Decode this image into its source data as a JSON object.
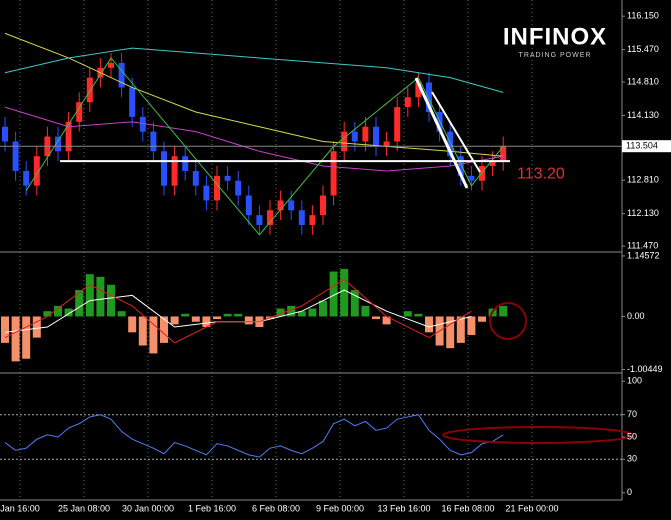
{
  "logo": {
    "name": "INFINOX",
    "tagline": "TRADING POWER"
  },
  "time_axis": [
    "Jan 16:00",
    "25 Jan 08:00",
    "30 Jan 00:00",
    "1 Feb 16:00",
    "6 Feb 08:00",
    "9 Feb 00:00",
    "13 Feb 16:00",
    "16 Feb 08:00",
    "21 Feb 00:00"
  ],
  "chart_data": [
    {
      "type": "candlestick",
      "up_color": "#ff2a2a",
      "down_color": "#2850ff",
      "open": [
        113.9,
        113.6,
        113.0,
        112.7,
        113.3,
        113.7,
        113.4,
        114.0,
        114.4,
        114.9,
        115.1,
        115.2,
        114.7,
        114.1,
        113.8,
        113.4,
        112.7,
        113.3,
        113.0,
        112.7,
        112.4,
        112.9,
        112.8,
        112.5,
        112.1,
        111.9,
        112.2,
        112.4,
        112.2,
        111.9,
        112.1,
        112.5,
        113.4,
        113.8,
        113.6,
        113.9,
        113.5,
        113.6,
        114.3,
        114.5,
        114.8,
        114.2,
        113.8,
        113.3,
        112.9,
        112.8,
        113.1,
        113.2
      ],
      "high": [
        114.1,
        113.8,
        113.2,
        113.5,
        113.9,
        113.9,
        114.2,
        114.6,
        115.1,
        115.3,
        115.4,
        115.4,
        114.9,
        114.3,
        114.0,
        113.6,
        113.5,
        113.5,
        113.2,
        112.9,
        113.1,
        113.1,
        113.0,
        112.7,
        112.3,
        112.4,
        112.6,
        112.6,
        112.4,
        112.3,
        112.7,
        113.6,
        114.0,
        114.0,
        114.1,
        114.1,
        113.8,
        114.5,
        114.7,
        115.0,
        115.0,
        114.4,
        114.0,
        113.5,
        113.1,
        113.3,
        113.4,
        113.7
      ],
      "low": [
        113.4,
        112.8,
        112.5,
        112.5,
        113.1,
        113.2,
        113.2,
        113.8,
        114.2,
        114.7,
        114.9,
        114.5,
        113.9,
        113.6,
        113.2,
        112.5,
        112.5,
        112.8,
        112.5,
        112.2,
        112.2,
        112.6,
        112.3,
        111.9,
        111.7,
        111.7,
        112.0,
        112.0,
        111.7,
        111.7,
        111.9,
        112.3,
        113.2,
        113.4,
        113.4,
        113.3,
        113.3,
        113.4,
        114.1,
        114.3,
        114.0,
        113.6,
        113.1,
        112.7,
        112.6,
        112.6,
        112.9,
        113.0
      ],
      "close": [
        113.6,
        113.0,
        112.7,
        113.3,
        113.7,
        113.4,
        114.0,
        114.4,
        114.9,
        115.1,
        115.2,
        114.7,
        114.1,
        113.8,
        113.4,
        112.7,
        113.3,
        113.0,
        112.7,
        112.4,
        112.9,
        112.8,
        112.5,
        112.1,
        111.9,
        112.2,
        112.4,
        112.2,
        111.9,
        112.1,
        112.5,
        113.4,
        113.8,
        113.6,
        113.9,
        113.5,
        113.6,
        114.3,
        114.5,
        114.8,
        114.2,
        113.8,
        113.3,
        112.9,
        112.8,
        113.1,
        113.2,
        113.5
      ],
      "lines": [
        {
          "color": "#d8d84a",
          "x": [
            0,
            6,
            12,
            18,
            24,
            30,
            36,
            42,
            47
          ],
          "values": [
            115.8,
            115.3,
            114.7,
            114.2,
            113.9,
            113.6,
            113.5,
            113.4,
            113.3
          ]
        },
        {
          "color": "#3fc8c8",
          "x": [
            0,
            6,
            12,
            18,
            24,
            30,
            36,
            42,
            47
          ],
          "values": [
            115.0,
            115.3,
            115.5,
            115.4,
            115.3,
            115.2,
            115.1,
            114.9,
            114.6
          ]
        },
        {
          "color": "#c840c8",
          "x": [
            0,
            6,
            12,
            18,
            24,
            30,
            36,
            42,
            47
          ],
          "values": [
            114.3,
            113.9,
            114.0,
            113.8,
            113.4,
            113.1,
            113.0,
            113.1,
            113.3
          ]
        },
        {
          "color": "#3cbf3c",
          "x": [
            2,
            10,
            24,
            31,
            39,
            44,
            47
          ],
          "values": [
            112.6,
            115.3,
            111.7,
            113.5,
            114.9,
            112.7,
            113.5
          ]
        }
      ],
      "support_line": 113.2,
      "support_label": "113.20",
      "last_price": 113.504,
      "ylim": [
        111.35,
        116.48
      ],
      "yticks": [
        {
          "value": 116.15,
          "label": "116.150"
        },
        {
          "value": 115.47,
          "label": "115.470"
        },
        {
          "value": 114.81,
          "label": "114.810"
        },
        {
          "value": 114.13,
          "label": "114.130"
        },
        {
          "value": 112.81,
          "label": "112.810"
        },
        {
          "value": 112.13,
          "label": "112.130"
        },
        {
          "value": 111.47,
          "label": "111.470"
        }
      ]
    },
    {
      "type": "bar",
      "pos_color": "#1f9a1f",
      "neg_color": "#f4906a",
      "values": [
        -0.5,
        -0.85,
        -0.8,
        -0.4,
        0.1,
        0.2,
        0.15,
        0.5,
        0.8,
        0.75,
        0.6,
        0.1,
        -0.3,
        -0.55,
        -0.7,
        -0.5,
        -0.15,
        0.05,
        -0.1,
        -0.2,
        -0.05,
        0.05,
        0.05,
        -0.15,
        -0.2,
        -0.05,
        0.15,
        0.2,
        0.1,
        0.15,
        0.3,
        0.85,
        0.9,
        0.5,
        0.2,
        -0.05,
        -0.15,
        0.0,
        0.1,
        0.05,
        -0.3,
        -0.55,
        -0.6,
        -0.5,
        -0.35,
        -0.1,
        0.15,
        0.2
      ],
      "lines": [
        {
          "color": "#ffffff",
          "x": [
            0,
            4,
            8,
            12,
            16,
            20,
            24,
            28,
            32,
            36,
            40,
            44
          ],
          "values": [
            -0.3,
            -0.2,
            0.3,
            0.4,
            -0.2,
            -0.1,
            -0.1,
            0.1,
            0.5,
            0.1,
            -0.2,
            0.0
          ]
        },
        {
          "color": "#e02020",
          "x": [
            0,
            4,
            8,
            12,
            16,
            20,
            24,
            28,
            32,
            36,
            40,
            44
          ],
          "values": [
            -0.4,
            0.0,
            0.6,
            0.2,
            -0.5,
            -0.1,
            -0.1,
            0.2,
            0.7,
            0.0,
            -0.4,
            0.1
          ]
        }
      ],
      "ylim": [
        -1.07,
        1.22
      ],
      "yticks": [
        1.14572,
        {
          "value": 0,
          "label": "0.00"
        },
        -1.00449
      ]
    },
    {
      "type": "line",
      "color": "#4a7ff0",
      "values": [
        45,
        38,
        40,
        48,
        52,
        50,
        58,
        62,
        68,
        70,
        66,
        55,
        48,
        44,
        40,
        35,
        45,
        42,
        38,
        34,
        44,
        42,
        38,
        34,
        32,
        40,
        42,
        38,
        35,
        40,
        46,
        62,
        66,
        60,
        64,
        56,
        58,
        66,
        68,
        70,
        56,
        48,
        38,
        34,
        36,
        44,
        46,
        52
      ],
      "grid_levels": [
        70,
        30
      ],
      "ylim": [
        -6.5,
        107.4
      ],
      "yticks": [
        100,
        70,
        50,
        30,
        0
      ]
    }
  ]
}
